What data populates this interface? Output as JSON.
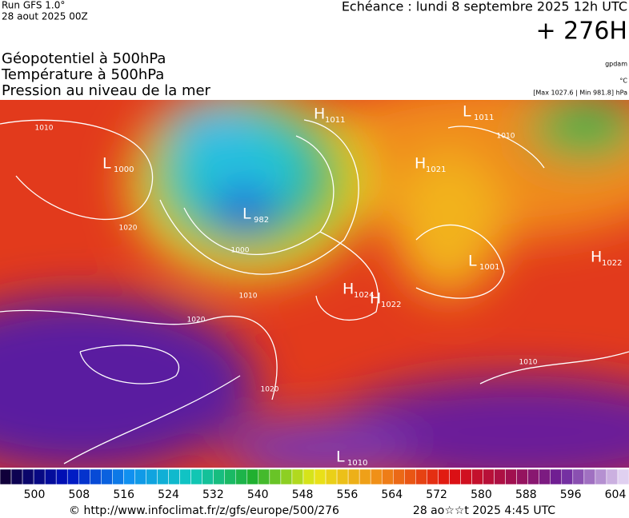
{
  "header": {
    "run": "Run GFS 1.0°",
    "date": "28 aout 2025 00Z",
    "echeance": "Echéance : lundi 8 septembre 2025 12h UTC",
    "lead": "+ 276H"
  },
  "titles": [
    "Géopotentiel à 500hPa",
    "Température à 500hPa",
    "Pression au niveau de la mer"
  ],
  "units": {
    "geopotential": "gpdam",
    "temperature": "°C",
    "pressure": "[Max 1027.6 | Min 981.8] hPa"
  },
  "pressure_centers": [
    {
      "letter": "H",
      "value": "1011"
    },
    {
      "letter": "L",
      "value": "1011"
    },
    {
      "letter": "L",
      "value": "1000"
    },
    {
      "letter": "H",
      "value": "1021"
    },
    {
      "letter": "L",
      "value": "982"
    },
    {
      "letter": "H",
      "value": "1022"
    },
    {
      "letter": "H",
      "value": "1024"
    },
    {
      "letter": "H",
      "value": "1022"
    },
    {
      "letter": "L",
      "value": "1001"
    },
    {
      "letter": "L",
      "value": "1010"
    }
  ],
  "isobar_labels": [
    "1010",
    "1020",
    "1000",
    "1010",
    "1020",
    "1020",
    "1010",
    "1010"
  ],
  "colorbar": {
    "labels": [
      "500",
      "508",
      "516",
      "524",
      "532",
      "540",
      "548",
      "556",
      "564",
      "572",
      "580",
      "588",
      "596",
      "604"
    ]
  },
  "footer": {
    "source": "© http://www.infoclimat.fr/z/gfs/europe/500/276",
    "timestamp": "28 ao☆☆t 2025  4:45 UTC"
  }
}
